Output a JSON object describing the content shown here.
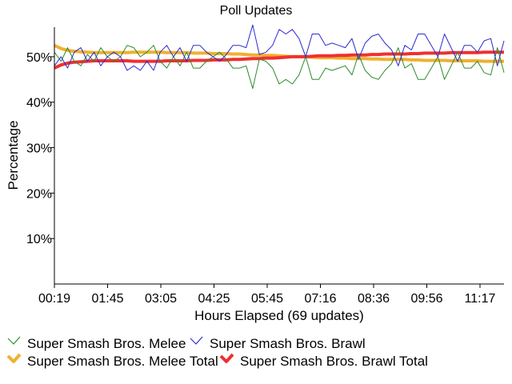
{
  "chart_data": {
    "type": "line",
    "title": "Poll Updates",
    "xlabel": "Hours Elapsed (69 updates)",
    "ylabel": "Percentage",
    "x_tick_labels": [
      "00:19",
      "01:45",
      "03:05",
      "04:25",
      "05:45",
      "07:16",
      "08:36",
      "09:56",
      "11:17"
    ],
    "y_tick_labels": [
      "10%",
      "20%",
      "30%",
      "40%",
      "50%"
    ],
    "y_ticks": [
      10,
      20,
      30,
      40,
      50
    ],
    "ylim": [
      0,
      56.5
    ],
    "update_count": 69,
    "grid": false,
    "legend_position": "bottom",
    "series": [
      {
        "name": "Super Smash Bros. Melee",
        "color": "#2e8b2e",
        "values": [
          51,
          49,
          52,
          49,
          48,
          50.5,
          49,
          52,
          50,
          49,
          50,
          52.5,
          52,
          50,
          51,
          52.5,
          49,
          47.5,
          50,
          48,
          51,
          47.5,
          47.5,
          49,
          50,
          51,
          49.5,
          47.5,
          47.5,
          48,
          43,
          49.5,
          49,
          47.5,
          44,
          45,
          44,
          46,
          50,
          45,
          45,
          47.5,
          47,
          47.5,
          48,
          46,
          50.5,
          47,
          45.5,
          45,
          47,
          48.5,
          52,
          47.5,
          48.5,
          45,
          45,
          47.5,
          50,
          45,
          48,
          51,
          47.5,
          47.5,
          49,
          46.5,
          46,
          52,
          46.5
        ]
      },
      {
        "name": "Super Smash Bros. Brawl",
        "color": "#2a2ad0",
        "values": [
          48,
          50,
          47.5,
          51,
          52,
          49,
          51,
          48,
          50,
          51,
          50,
          47,
          48,
          47,
          49,
          47,
          51,
          52.5,
          50,
          52,
          49,
          52.5,
          52.5,
          51,
          50,
          49,
          50.5,
          52.5,
          52.5,
          52,
          57,
          50.5,
          51,
          52.5,
          56,
          55,
          56,
          54,
          50,
          55,
          55,
          52.5,
          53,
          52.5,
          52,
          54,
          49.5,
          53,
          54.5,
          55,
          53,
          51.5,
          48,
          52.5,
          51.5,
          55,
          55,
          52.5,
          50,
          55,
          52,
          49,
          52.5,
          52.5,
          51,
          53.5,
          54,
          48,
          53.5
        ]
      },
      {
        "name": "Super Smash Bros. Melee Total",
        "color": "#f0b030",
        "values": [
          52.5,
          51.8,
          51.4,
          51.2,
          51.1,
          51.0,
          50.9,
          50.9,
          50.9,
          50.9,
          50.9,
          50.9,
          51.0,
          51.0,
          51.0,
          51.0,
          51.0,
          50.9,
          50.9,
          50.9,
          50.9,
          50.8,
          50.8,
          50.8,
          50.7,
          50.7,
          50.7,
          50.6,
          50.6,
          50.5,
          50.4,
          50.4,
          50.3,
          50.3,
          50.2,
          50.1,
          50.0,
          50.0,
          50.0,
          49.9,
          49.8,
          49.8,
          49.8,
          49.7,
          49.7,
          49.6,
          49.6,
          49.6,
          49.5,
          49.5,
          49.4,
          49.4,
          49.4,
          49.4,
          49.3,
          49.3,
          49.2,
          49.2,
          49.2,
          49.2,
          49.1,
          49.1,
          49.1,
          49.1,
          49.1,
          49.0,
          49.0,
          49.0,
          49.0
        ]
      },
      {
        "name": "Super Smash Bros. Brawl Total",
        "color": "#f03030",
        "values": [
          47.5,
          48.2,
          48.6,
          48.8,
          48.9,
          49.0,
          49.1,
          49.1,
          49.1,
          49.1,
          49.1,
          49.1,
          49.0,
          49.0,
          49.0,
          49.0,
          49.0,
          49.1,
          49.1,
          49.1,
          49.1,
          49.2,
          49.2,
          49.2,
          49.3,
          49.3,
          49.3,
          49.4,
          49.4,
          49.5,
          49.6,
          49.6,
          49.7,
          49.7,
          49.8,
          49.9,
          50.0,
          50.0,
          50.0,
          50.1,
          50.2,
          50.2,
          50.2,
          50.3,
          50.3,
          50.4,
          50.4,
          50.4,
          50.5,
          50.5,
          50.6,
          50.6,
          50.6,
          50.6,
          50.7,
          50.7,
          50.8,
          50.8,
          50.8,
          50.8,
          50.9,
          50.9,
          50.9,
          50.9,
          50.9,
          51.0,
          51.0,
          51.0,
          51.0
        ]
      }
    ]
  }
}
